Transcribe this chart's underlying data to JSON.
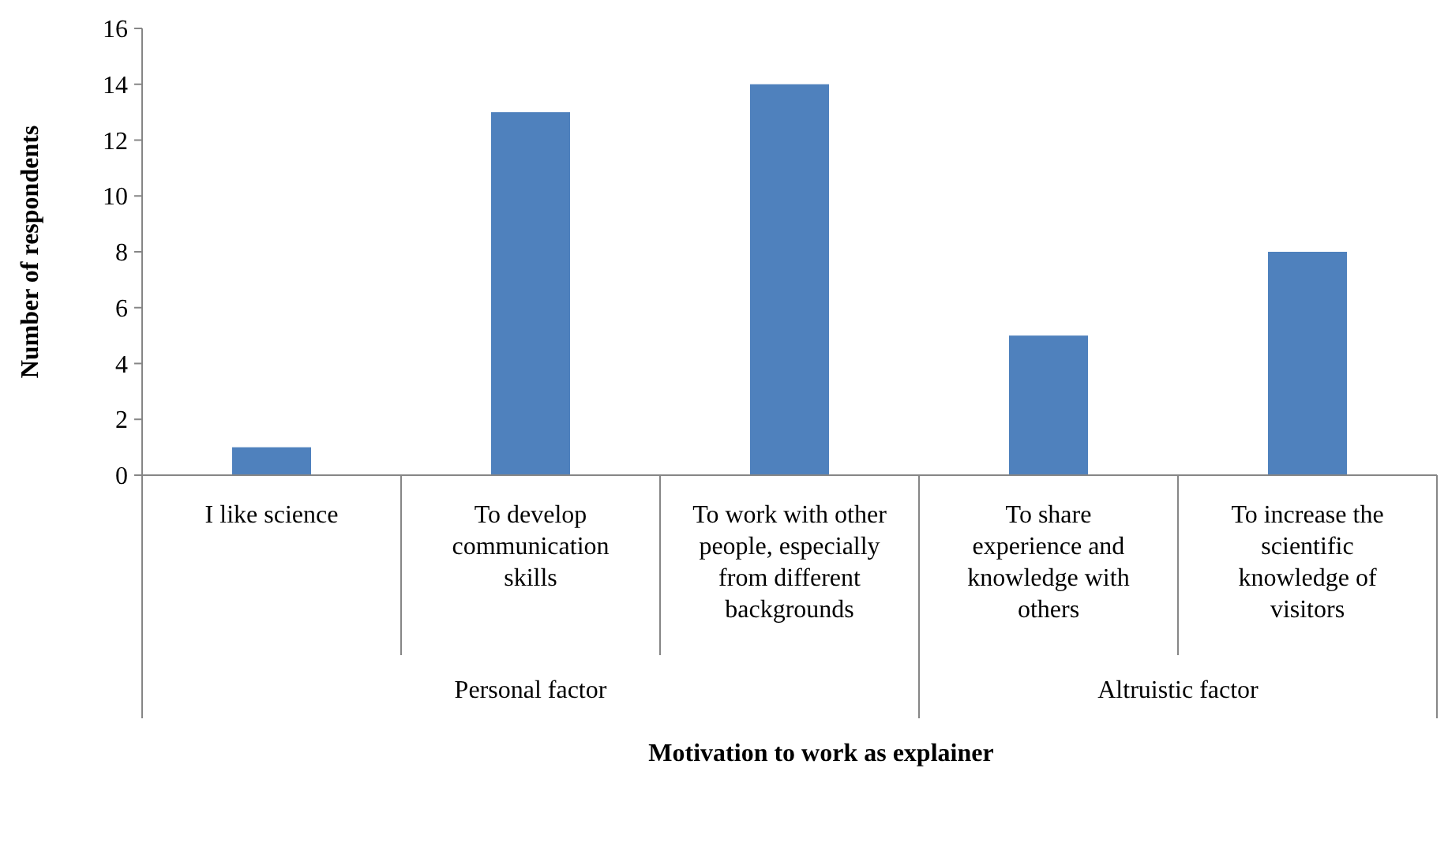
{
  "chart_data": {
    "type": "bar",
    "xlabel": "Motivation to work as explainer",
    "ylabel": "Number of respondents",
    "categories": [
      "I like science",
      "To develop communication skills",
      "To work with other people, especially from different backgrounds",
      "To share experience and knowledge with others",
      "To increase the scientific knowledge of visitors"
    ],
    "values": [
      1,
      13,
      14,
      5,
      8
    ],
    "color": "#4f81bd",
    "ylim": [
      0,
      16
    ],
    "yticks": [
      0,
      2,
      4,
      6,
      8,
      10,
      12,
      14,
      16
    ],
    "annotations": [
      "Personal factor",
      "Altruistic factor"
    ]
  }
}
